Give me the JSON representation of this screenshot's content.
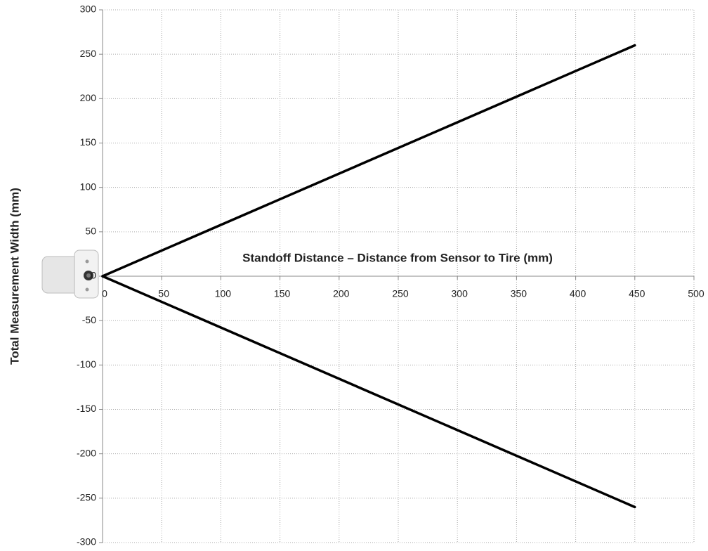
{
  "chart_data": {
    "type": "line",
    "x_label": "Standoff Distance – Distance from Sensor to Tire (mm)",
    "y_label": "Total Measurement Width (mm)",
    "x": [
      0,
      450
    ],
    "series": [
      {
        "color": "#000000",
        "values": [
          0,
          260
        ]
      },
      {
        "color": "#000000",
        "values": [
          0,
          -260
        ]
      }
    ],
    "xlim": [
      0,
      500
    ],
    "xticks": [
      0,
      50,
      100,
      150,
      200,
      250,
      300,
      350,
      400,
      450,
      500
    ],
    "ylim": [
      -300,
      300
    ],
    "yticks": [
      -300,
      -250,
      -200,
      -150,
      -100,
      -50,
      0,
      50,
      100,
      150,
      200,
      250,
      300
    ],
    "grid": true
  }
}
